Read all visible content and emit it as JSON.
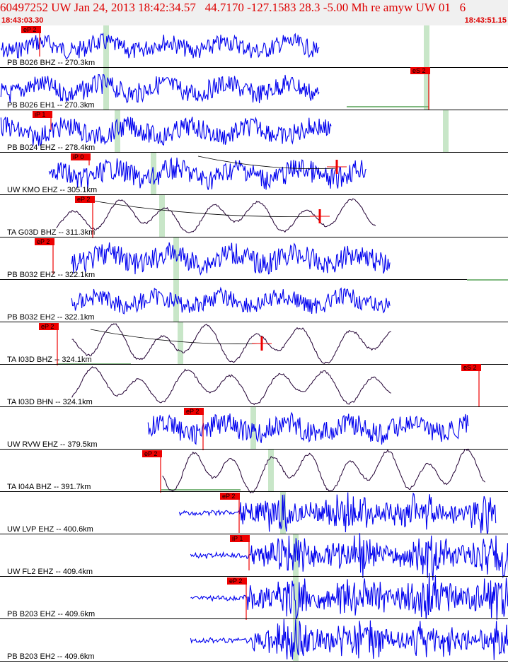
{
  "header": {
    "title": "60497252 UW Jan 24, 2013 18:42:34.57   44.7170 -127.1583 28.3 -5.00 Mh re amyw UW 01   6",
    "start_time": "18:43:03.30",
    "end_time": "18:43:51.15"
  },
  "colors": {
    "header_background": "#f0f0f0",
    "header_text": "#dd0000",
    "waveform_blue": "#0000ee",
    "waveform_dark": "#220033",
    "pick_red": "#ee0000",
    "theoretical_marker_green": "#c8e6c8",
    "residual_line_green": "#7fb87f"
  },
  "traces": [
    {
      "label": "PB B026 BHZ -- 270.3km",
      "color": "blue",
      "picks": [
        "eP 2"
      ]
    },
    {
      "label": "PB B026 EH1 -- 270.3km",
      "color": "blue",
      "picks": [
        "eS 2"
      ]
    },
    {
      "label": "PB B024 EHZ -- 278.4km",
      "color": "blue",
      "picks": [
        "iP 1"
      ]
    },
    {
      "label": "UW KMO EHZ -- 305.1km",
      "color": "blue",
      "picks": [
        "iP 0"
      ]
    },
    {
      "label": "TA G03D BHZ -- 311.3km",
      "color": "dark",
      "picks": [
        "eP 2"
      ]
    },
    {
      "label": "PB B032 EHZ -- 322.1km",
      "color": "blue",
      "picks": [
        "eP 2"
      ]
    },
    {
      "label": "PB B032 EH2 -- 322.1km",
      "color": "blue",
      "picks": []
    },
    {
      "label": "TA I03D BHZ -- 324.1km",
      "color": "dark",
      "picks": [
        "eP 2"
      ]
    },
    {
      "label": "TA I03D BHN -- 324.1km",
      "color": "dark",
      "picks": [
        "eS 2"
      ]
    },
    {
      "label": "UW RVW EHZ -- 379.5km",
      "color": "blue",
      "picks": [
        "eP 2"
      ]
    },
    {
      "label": "TA I04A BHZ -- 391.7km",
      "color": "dark",
      "picks": [
        "eP 2"
      ]
    },
    {
      "label": "UW LVP EHZ -- 400.6km",
      "color": "blue",
      "picks": [
        "eP 2"
      ]
    },
    {
      "label": "UW FL2 EHZ -- 409.4km",
      "color": "blue",
      "picks": [
        "iP 1"
      ]
    },
    {
      "label": "PB B203 EHZ -- 409.6km",
      "color": "blue",
      "picks": [
        "eP 2"
      ]
    },
    {
      "label": "PB B203 EH2 -- 409.6km",
      "color": "blue",
      "picks": []
    }
  ]
}
